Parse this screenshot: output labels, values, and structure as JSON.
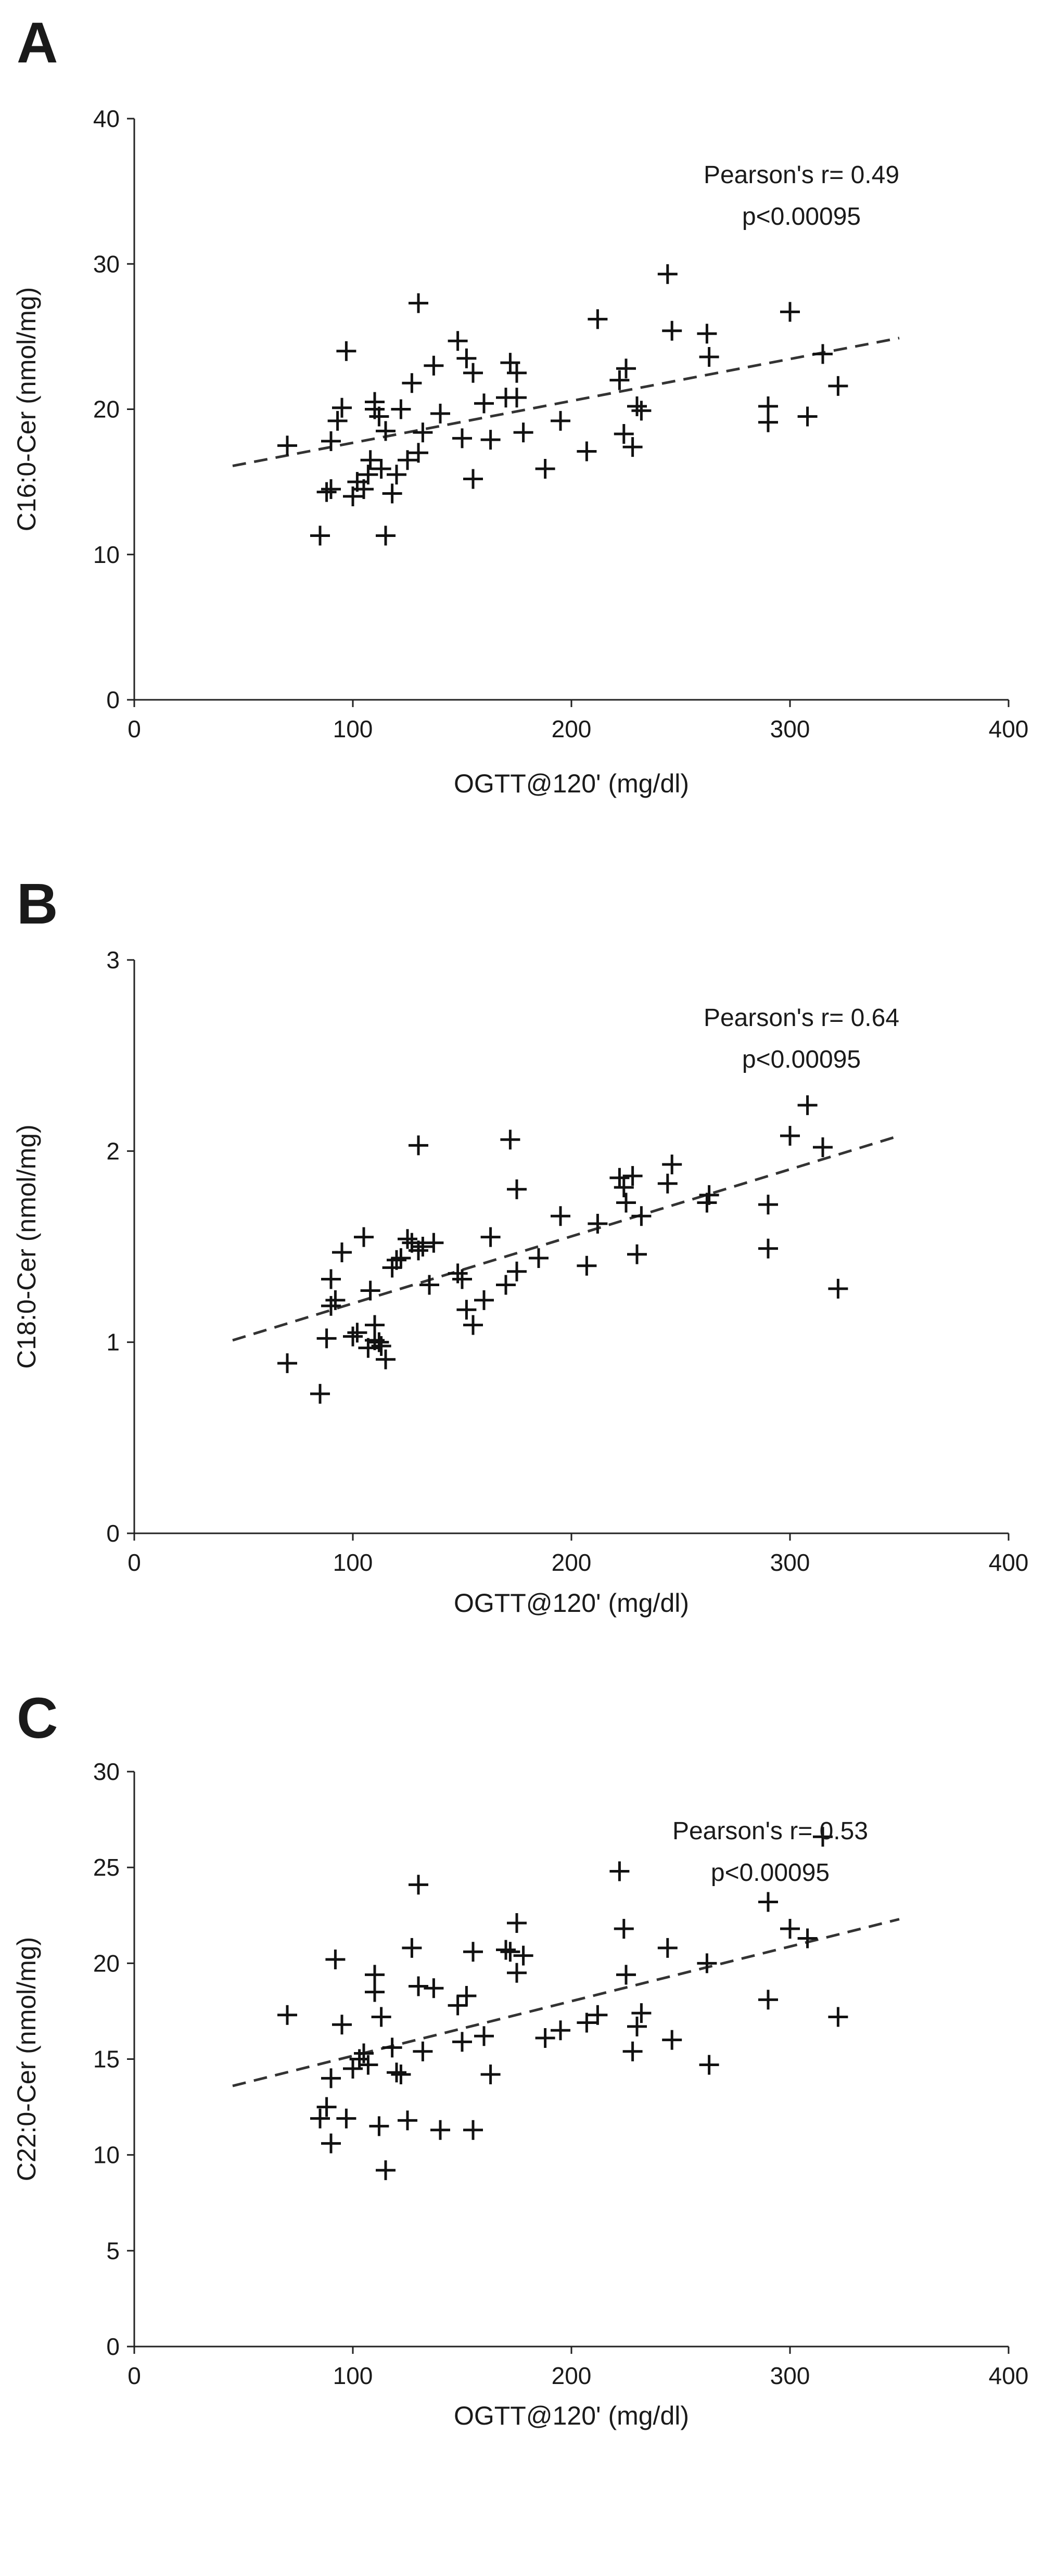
{
  "figure": {
    "colors": {
      "axis": "#222222",
      "marker": "#111111",
      "trendline": "#333333",
      "text": "#1a1a1a"
    }
  },
  "chart_data": [
    {
      "panel": "A",
      "type": "scatter",
      "title": "",
      "xlabel": "OGTT@120' (mg/dl)",
      "ylabel": "C16:0-Cer (nmol/mg)",
      "xlim": [
        0,
        400
      ],
      "ylim": [
        0,
        40
      ],
      "xticks": [
        0,
        100,
        200,
        300,
        400
      ],
      "yticks": [
        0,
        10,
        20,
        30,
        40
      ],
      "grid": false,
      "marker": "plus",
      "annotation": [
        "Pearson's r= 0.49",
        "p<0.00095"
      ],
      "trendline": {
        "style": "dashed",
        "from": [
          45,
          16.1
        ],
        "to": [
          350,
          24.9
        ]
      },
      "x": [
        70,
        85,
        88,
        90,
        90,
        93,
        95,
        97,
        100,
        102,
        105,
        107,
        108,
        110,
        110,
        112,
        113,
        115,
        115,
        118,
        120,
        122,
        125,
        127,
        130,
        130,
        132,
        137,
        140,
        148,
        150,
        152,
        155,
        155,
        160,
        163,
        170,
        172,
        175,
        175,
        178,
        188,
        195,
        207,
        212,
        222,
        224,
        225,
        228,
        230,
        232,
        244,
        246,
        262,
        263,
        290,
        290,
        300,
        308,
        315,
        322
      ],
      "y": [
        17.5,
        11.3,
        14.3,
        14.5,
        17.8,
        19.2,
        20.1,
        24.0,
        14.0,
        15.0,
        14.5,
        15.5,
        16.5,
        20.0,
        20.5,
        19.5,
        15.9,
        11.3,
        18.5,
        14.2,
        15.5,
        20.0,
        16.5,
        21.8,
        17.0,
        27.3,
        18.4,
        23.0,
        19.7,
        24.7,
        18.0,
        23.5,
        15.2,
        22.5,
        20.4,
        17.9,
        20.8,
        23.2,
        22.5,
        20.8,
        18.4,
        15.9,
        19.2,
        17.1,
        26.2,
        22.0,
        18.3,
        22.8,
        17.4,
        20.2,
        19.9,
        29.3,
        25.4,
        25.2,
        23.6,
        19.1,
        20.2,
        26.7,
        19.5,
        23.8,
        21.6
      ]
    },
    {
      "panel": "B",
      "type": "scatter",
      "title": "",
      "xlabel": "OGTT@120' (mg/dl)",
      "ylabel": "C18:0-Cer (nmol/mg)",
      "xlim": [
        0,
        400
      ],
      "ylim": [
        0,
        3
      ],
      "xticks": [
        0,
        100,
        200,
        300,
        400
      ],
      "yticks": [
        0,
        1,
        2,
        3
      ],
      "grid": false,
      "marker": "plus",
      "annotation": [
        "Pearson's r= 0.64",
        "p<0.00095"
      ],
      "trendline": {
        "style": "dashed",
        "from": [
          45,
          1.01
        ],
        "to": [
          350,
          2.08
        ]
      },
      "x": [
        70,
        85,
        88,
        90,
        90,
        92,
        95,
        100,
        102,
        105,
        107,
        108,
        110,
        110,
        112,
        113,
        115,
        118,
        120,
        122,
        125,
        127,
        130,
        130,
        132,
        135,
        137,
        148,
        150,
        152,
        155,
        160,
        163,
        170,
        172,
        175,
        175,
        185,
        195,
        207,
        212,
        222,
        224,
        225,
        228,
        230,
        232,
        244,
        246,
        262,
        263,
        290,
        290,
        300,
        308,
        315,
        322
      ],
      "y": [
        0.89,
        0.73,
        1.02,
        1.33,
        1.19,
        1.22,
        1.47,
        1.03,
        1.05,
        1.55,
        0.97,
        1.27,
        1.09,
        1.01,
        1.0,
        0.98,
        0.91,
        1.39,
        1.43,
        1.44,
        1.54,
        1.52,
        2.03,
        1.48,
        1.5,
        1.3,
        1.52,
        1.36,
        1.33,
        1.17,
        1.09,
        1.22,
        1.55,
        1.3,
        2.06,
        1.37,
        1.8,
        1.44,
        1.66,
        1.4,
        1.62,
        1.86,
        1.81,
        1.73,
        1.87,
        1.46,
        1.66,
        1.83,
        1.93,
        1.73,
        1.77,
        1.72,
        1.49,
        2.08,
        2.24,
        2.02,
        1.28
      ]
    },
    {
      "panel": "C",
      "type": "scatter",
      "title": "",
      "xlabel": "OGTT@120' (mg/dl)",
      "ylabel": "C22:0-Cer (nmol/mg)",
      "xlim": [
        0,
        400
      ],
      "ylim": [
        0,
        30
      ],
      "xticks": [
        0,
        100,
        200,
        300,
        400
      ],
      "yticks": [
        0,
        5,
        10,
        15,
        20,
        25,
        30
      ],
      "grid": false,
      "marker": "plus",
      "annotation": [
        "Pearson's r= 0.53",
        "p<0.00095"
      ],
      "trendline": {
        "style": "dashed",
        "from": [
          45,
          13.6
        ],
        "to": [
          350,
          22.3
        ]
      },
      "x": [
        70,
        85,
        88,
        90,
        90,
        92,
        95,
        97,
        100,
        103,
        105,
        107,
        110,
        110,
        112,
        113,
        115,
        118,
        120,
        122,
        125,
        127,
        130,
        130,
        132,
        137,
        140,
        148,
        150,
        152,
        155,
        155,
        160,
        163,
        170,
        172,
        175,
        175,
        178,
        188,
        195,
        207,
        212,
        222,
        224,
        225,
        228,
        230,
        232,
        244,
        246,
        262,
        263,
        290,
        290,
        300,
        308,
        315,
        322
      ],
      "y": [
        17.3,
        11.9,
        12.5,
        10.6,
        14.0,
        20.2,
        16.8,
        11.9,
        14.5,
        15.0,
        15.3,
        14.7,
        19.4,
        18.5,
        11.5,
        17.2,
        9.2,
        15.6,
        14.3,
        14.2,
        11.8,
        20.8,
        18.8,
        24.1,
        15.4,
        18.7,
        11.3,
        17.8,
        15.9,
        18.3,
        11.3,
        20.6,
        16.2,
        14.2,
        20.7,
        20.6,
        19.5,
        22.1,
        20.4,
        16.1,
        16.5,
        16.9,
        17.3,
        24.8,
        21.8,
        19.4,
        15.4,
        16.7,
        17.4,
        20.8,
        16.0,
        20.0,
        14.7,
        23.2,
        18.1,
        21.8,
        21.3,
        26.6,
        17.2
      ]
    }
  ]
}
